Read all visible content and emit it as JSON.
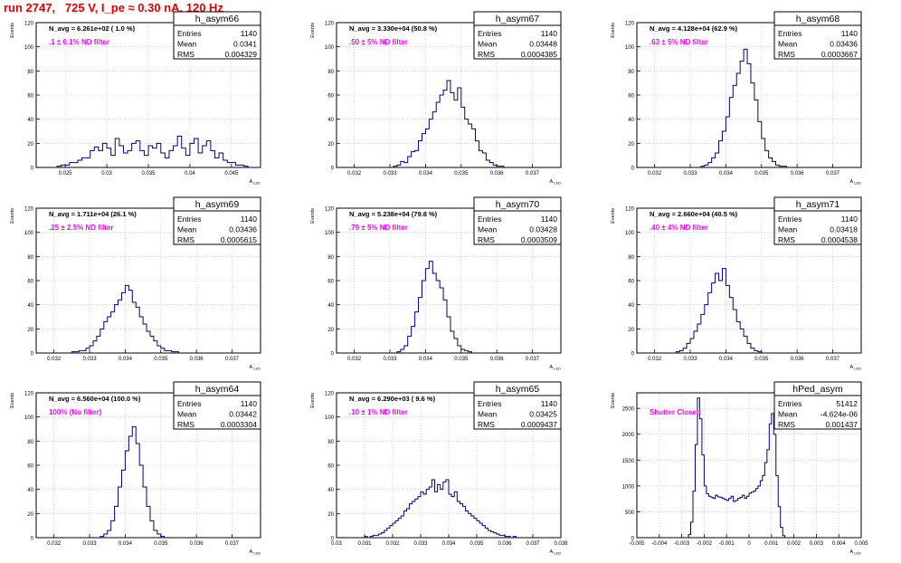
{
  "page": {
    "title": "run 2747,   725 V, I_pe ≈ 0.30 nA, 120 Hz"
  },
  "colors": {
    "title": "#e00000",
    "filter_label": "#ff00ff",
    "histogram": "#000080",
    "grid": "#b4b4b4",
    "axes": "#000000"
  },
  "stat_labels": {
    "entries": "Entries",
    "mean": "Mean",
    "rms": "RMS"
  },
  "axis_text": {
    "y": "Events",
    "x": "A",
    "x_sub": "LED"
  },
  "chart_data": [
    {
      "type": "histogram",
      "title": "h_asym66",
      "stats": {
        "entries": "1140",
        "mean": "0.0341",
        "rms": "0.004329"
      },
      "annotation": "N_avg = 6.261e+02 ( 1.0 %)",
      "filter_label": ".1 ± 0.1% ND filter",
      "xlim": [
        0.0215,
        0.0485
      ],
      "ylim": [
        0,
        120
      ],
      "xticks": [
        "0.025",
        "0.03",
        "0.035",
        "0.04",
        "0.045"
      ],
      "xtick_values": [
        0.025,
        0.03,
        0.035,
        0.04,
        0.045
      ],
      "yticks": [
        "0",
        "20",
        "40",
        "60",
        "80",
        "100",
        "120"
      ],
      "ytick_values": [
        0,
        20,
        40,
        60,
        80,
        100,
        120
      ],
      "bins": {
        "lo": 0.0235,
        "width": 0.0005,
        "counts": [
          0,
          1,
          2,
          2,
          4,
          4,
          6,
          8,
          8,
          14,
          17,
          14,
          20,
          16,
          10,
          24,
          18,
          12,
          14,
          20,
          22,
          14,
          10,
          18,
          16,
          20,
          12,
          8,
          14,
          18,
          26,
          16,
          10,
          20,
          24,
          12,
          18,
          22,
          14,
          8,
          12,
          6,
          4,
          4,
          2,
          2,
          1,
          0
        ]
      }
    },
    {
      "type": "histogram",
      "title": "h_asym67",
      "stats": {
        "entries": "1140",
        "mean": "0.03448",
        "rms": "0.0004385"
      },
      "annotation": "N_avg = 3.330e+04 (50.8 %)",
      "filter_label": ".50 ± 5% ND filter",
      "xlim": [
        0.0315,
        0.0378
      ],
      "ylim": [
        0,
        120
      ],
      "xticks": [
        "0.032",
        "0.033",
        "0.034",
        "0.035",
        "0.036",
        "0.037"
      ],
      "xtick_values": [
        0.032,
        0.033,
        0.034,
        0.035,
        0.036,
        0.037
      ],
      "yticks": [
        "0",
        "20",
        "40",
        "60",
        "80",
        "100",
        "120"
      ],
      "ytick_values": [
        0,
        20,
        40,
        60,
        80,
        100,
        120
      ],
      "bins": {
        "lo": 0.0331,
        "width": 0.0001,
        "counts": [
          1,
          2,
          5,
          4,
          9,
          13,
          14,
          22,
          28,
          32,
          40,
          46,
          54,
          60,
          64,
          72,
          62,
          56,
          66,
          50,
          40,
          36,
          32,
          22,
          14,
          12,
          6,
          4,
          2,
          1,
          1
        ]
      }
    },
    {
      "type": "histogram",
      "title": "h_asym68",
      "stats": {
        "entries": "1140",
        "mean": "0.03436",
        "rms": "0.0003667"
      },
      "annotation": "N_avg = 4.128e+04 (62.9 %)",
      "filter_label": ".63 ± 5% ND filter",
      "xlim": [
        0.0315,
        0.0378
      ],
      "ylim": [
        0,
        120
      ],
      "xticks": [
        "0.032",
        "0.033",
        "0.034",
        "0.035",
        "0.036",
        "0.037"
      ],
      "xtick_values": [
        0.032,
        0.033,
        0.034,
        0.035,
        0.036,
        0.037
      ],
      "yticks": [
        "0",
        "20",
        "40",
        "60",
        "80",
        "100",
        "120"
      ],
      "ytick_values": [
        0,
        20,
        40,
        60,
        80,
        100,
        120
      ],
      "bins": {
        "lo": 0.0333,
        "width": 0.0001,
        "counts": [
          1,
          2,
          4,
          8,
          12,
          22,
          30,
          42,
          58,
          68,
          78,
          88,
          98,
          86,
          70,
          56,
          38,
          24,
          14,
          8,
          5,
          2,
          1,
          1
        ]
      }
    },
    {
      "type": "histogram",
      "title": "h_asym69",
      "stats": {
        "entries": "1140",
        "mean": "0.03436",
        "rms": "0.0005615"
      },
      "annotation": "N_avg = 1.711e+04 (26.1 %)",
      "filter_label": ".25 ± 2.5% ND filter",
      "xlim": [
        0.0315,
        0.0378
      ],
      "ylim": [
        0,
        120
      ],
      "xticks": [
        "0.032",
        "0.033",
        "0.034",
        "0.035",
        "0.036",
        "0.037"
      ],
      "xtick_values": [
        0.032,
        0.033,
        0.034,
        0.035,
        0.036,
        0.037
      ],
      "yticks": [
        "0",
        "20",
        "40",
        "60",
        "80",
        "100",
        "120"
      ],
      "ytick_values": [
        0,
        20,
        40,
        60,
        80,
        100,
        120
      ],
      "bins": {
        "lo": 0.0325,
        "width": 0.0001,
        "counts": [
          1,
          1,
          2,
          2,
          4,
          6,
          10,
          14,
          20,
          26,
          30,
          34,
          40,
          44,
          50,
          56,
          52,
          42,
          38,
          30,
          24,
          18,
          14,
          10,
          6,
          4,
          2,
          2,
          1,
          1
        ]
      }
    },
    {
      "type": "histogram",
      "title": "h_asym70",
      "stats": {
        "entries": "1140",
        "mean": "0.03428",
        "rms": "0.0003509"
      },
      "annotation": "N_avg = 5.238e+04 (79.8 %)",
      "filter_label": ".79 ± 5% ND filter",
      "xlim": [
        0.0315,
        0.0378
      ],
      "ylim": [
        0,
        120
      ],
      "xticks": [
        "0.032",
        "0.033",
        "0.034",
        "0.035",
        "0.036",
        "0.037"
      ],
      "xtick_values": [
        0.032,
        0.033,
        0.034,
        0.035,
        0.036,
        0.037
      ],
      "yticks": [
        "0",
        "20",
        "40",
        "60",
        "80",
        "100",
        "120"
      ],
      "ytick_values": [
        0,
        20,
        40,
        60,
        80,
        100,
        120
      ],
      "bins": {
        "lo": 0.0332,
        "width": 0.0001,
        "counts": [
          1,
          3,
          6,
          14,
          22,
          34,
          46,
          60,
          70,
          76,
          66,
          60,
          54,
          44,
          30,
          18,
          12,
          6,
          3,
          2,
          1
        ]
      }
    },
    {
      "type": "histogram",
      "title": "h_asym71",
      "stats": {
        "entries": "1140",
        "mean": "0.03418",
        "rms": "0.0004538"
      },
      "annotation": "N_avg = 2.660e+04 (40.5 %)",
      "filter_label": ".40 ± 4% ND filter",
      "xlim": [
        0.0315,
        0.0378
      ],
      "ylim": [
        0,
        120
      ],
      "xticks": [
        "0.032",
        "0.033",
        "0.034",
        "0.035",
        "0.036",
        "0.037"
      ],
      "xtick_values": [
        0.032,
        0.033,
        0.034,
        0.035,
        0.036,
        0.037
      ],
      "yticks": [
        "0",
        "20",
        "40",
        "60",
        "80",
        "100",
        "120"
      ],
      "ytick_values": [
        0,
        20,
        40,
        60,
        80,
        100,
        120
      ],
      "bins": {
        "lo": 0.0326,
        "width": 0.0001,
        "counts": [
          1,
          2,
          4,
          8,
          12,
          18,
          24,
          32,
          40,
          50,
          58,
          66,
          60,
          70,
          56,
          46,
          36,
          26,
          20,
          14,
          8,
          4,
          2,
          1
        ]
      }
    },
    {
      "type": "histogram",
      "title": "h_asym64",
      "stats": {
        "entries": "1140",
        "mean": "0.03442",
        "rms": "0.0003304"
      },
      "annotation": "N_avg = 6.560e+04 (100.0 %)",
      "filter_label": "100% (No filter)",
      "xlim": [
        0.0315,
        0.0378
      ],
      "ylim": [
        0,
        120
      ],
      "xticks": [
        "0.032",
        "0.033",
        "0.034",
        "0.035",
        "0.036",
        "0.037"
      ],
      "xtick_values": [
        0.032,
        0.033,
        0.034,
        0.035,
        0.036,
        0.037
      ],
      "yticks": [
        "0",
        "20",
        "40",
        "60",
        "80",
        "100",
        "120"
      ],
      "ytick_values": [
        0,
        20,
        40,
        60,
        80,
        100,
        120
      ],
      "bins": {
        "lo": 0.0333,
        "width": 0.0001,
        "counts": [
          1,
          3,
          6,
          14,
          26,
          42,
          56,
          72,
          84,
          92,
          78,
          60,
          42,
          26,
          14,
          6,
          3,
          1
        ]
      }
    },
    {
      "type": "histogram",
      "title": "h_asym65",
      "stats": {
        "entries": "1140",
        "mean": "0.03425",
        "rms": "0.0009437"
      },
      "annotation": "N_avg = 6.290e+03 ( 9.6 %)",
      "filter_label": ".10 ± 1% ND filter",
      "xlim": [
        0.03,
        0.038
      ],
      "ylim": [
        0,
        120
      ],
      "xticks": [
        "0.03",
        "0.031",
        "0.032",
        "0.033",
        "0.034",
        "0.035",
        "0.036",
        "0.037",
        "0.038"
      ],
      "xtick_values": [
        0.03,
        0.031,
        0.032,
        0.033,
        0.034,
        0.035,
        0.036,
        0.037,
        0.038
      ],
      "yticks": [
        "0",
        "20",
        "40",
        "60",
        "80",
        "100",
        "120"
      ],
      "ytick_values": [
        0,
        20,
        40,
        60,
        80,
        100,
        120
      ],
      "bins": {
        "lo": 0.031,
        "width": 0.0001,
        "counts": [
          1,
          0,
          1,
          2,
          2,
          3,
          4,
          6,
          8,
          10,
          12,
          14,
          16,
          18,
          22,
          24,
          28,
          30,
          32,
          34,
          38,
          36,
          40,
          42,
          48,
          38,
          44,
          40,
          46,
          48,
          36,
          34,
          38,
          30,
          28,
          26,
          22,
          20,
          18,
          16,
          14,
          12,
          10,
          8,
          6,
          5,
          4,
          3,
          2,
          2,
          1,
          1,
          0,
          1
        ]
      }
    },
    {
      "type": "histogram",
      "title": "hPed_asym",
      "stats": {
        "entries": "51412",
        "mean": "-4.624e-06",
        "rms": "0.001437"
      },
      "annotation": "",
      "filter_label": "Shutter Closed",
      "xlim": [
        -0.005,
        0.005
      ],
      "ylim": [
        0,
        2800
      ],
      "xticks": [
        "-0.005",
        "-0.004",
        "-0.003",
        "-0.002",
        "-0.001",
        "0",
        "0.001",
        "0.002",
        "0.003",
        "0.004",
        "0.005"
      ],
      "xtick_values": [
        -0.005,
        -0.004,
        -0.003,
        -0.002,
        -0.001,
        0,
        0.001,
        0.002,
        0.003,
        0.004,
        0.005
      ],
      "yticks": [
        "0",
        "500",
        "1000",
        "1500",
        "2000",
        "2500"
      ],
      "ytick_values": [
        0,
        500,
        1000,
        1500,
        2000,
        2500
      ],
      "bins": {
        "lo": -0.0028,
        "width": 0.0001,
        "counts": [
          0,
          60,
          300,
          900,
          1800,
          2700,
          2300,
          1600,
          1000,
          850,
          800,
          780,
          760,
          820,
          790,
          780,
          760,
          740,
          720,
          760,
          800,
          700,
          720,
          760,
          780,
          820,
          760,
          800,
          860,
          880,
          900,
          950,
          1000,
          1100,
          1200,
          1450,
          1700,
          2200,
          2400,
          2000,
          1200,
          600,
          200,
          40,
          0
        ]
      }
    }
  ]
}
